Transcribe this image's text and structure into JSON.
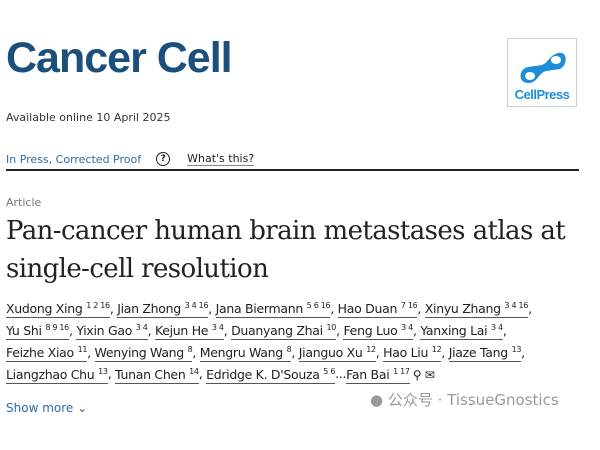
{
  "journal": {
    "title": "Cancer Cell",
    "publisher_logo": "CellPress"
  },
  "availability": "Available online 10 April 2025",
  "status": {
    "label": "In Press, Corrected Proof",
    "help_icon": "question-circle-icon",
    "help_link": "What's this?"
  },
  "article": {
    "type": "Article",
    "title_lines": [
      "Pan-cancer human brain metastases atlas at",
      "single-cell resolution"
    ]
  },
  "authors_rows": [
    [
      {
        "name": "Xudong Xing",
        "sup": "1 2 16",
        "sep": ", "
      },
      {
        "name": "Jian Zhong",
        "sup": "3 4 16",
        "sep": ", "
      },
      {
        "name": "Jana Biermann",
        "sup": "5 6 16",
        "sep": ", "
      },
      {
        "name": "Hao Duan",
        "sup": "7 16",
        "sep": ", "
      },
      {
        "name": "Xinyu Zhang",
        "sup": "3 4 16",
        "sep": ","
      }
    ],
    [
      {
        "name": "Yu Shi",
        "sup": "8 9 16",
        "sep": ", "
      },
      {
        "name": "Yixin Gao",
        "sup": "3 4",
        "sep": ", "
      },
      {
        "name": "Kejun He",
        "sup": "3 4",
        "sep": ", "
      },
      {
        "name": "Duanyang Zhai",
        "sup": "10",
        "sep": ", "
      },
      {
        "name": "Feng Luo",
        "sup": "3 4",
        "sep": ", "
      },
      {
        "name": "Yanxing Lai",
        "sup": "3 4",
        "sep": ","
      }
    ],
    [
      {
        "name": "Feizhe Xiao",
        "sup": "11",
        "sep": ", "
      },
      {
        "name": "Wenying Wang",
        "sup": "8",
        "sep": ", "
      },
      {
        "name": "Mengru Wang",
        "sup": "8",
        "sep": ", "
      },
      {
        "name": "Jianguo Xu",
        "sup": "12",
        "sep": ", "
      },
      {
        "name": "Hao Liu",
        "sup": "12",
        "sep": ", "
      },
      {
        "name": "Jiaze Tang",
        "sup": "13",
        "sep": ","
      }
    ],
    [
      {
        "name": "Liangzhao Chu",
        "sup": "13",
        "sep": ", "
      },
      {
        "name": "Tunan Chen",
        "sup": "14",
        "sep": ", "
      },
      {
        "name": "Edridge K. D'Souza",
        "sup": "5 6",
        "sep": "..."
      },
      {
        "name": "Fan Bai",
        "sup": "1 17",
        "sep": ""
      }
    ]
  ],
  "corresponding_icons": [
    "person-icon",
    "envelope-icon"
  ],
  "show_more": "Show more",
  "watermark": "公众号 · TissueGnostics",
  "colors": {
    "journal": "#1b4f7c",
    "link": "#2b6da3",
    "cellpress": "#1d8fd8"
  }
}
